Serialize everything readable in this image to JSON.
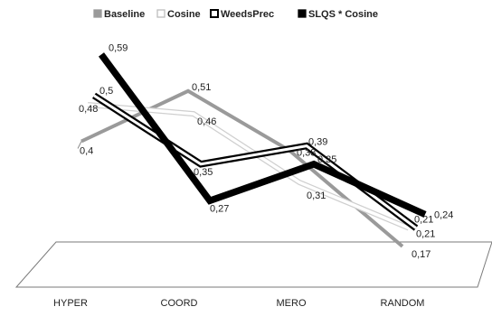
{
  "chart_data": {
    "type": "line",
    "title": "",
    "xlabel": "",
    "ylabel": "",
    "categories": [
      "HYPER",
      "COORD",
      "MERO",
      "RANDOM"
    ],
    "ylim": [
      0.1,
      0.65
    ],
    "grid": false,
    "legend_position": "top",
    "style": "3d-ribbon",
    "series": [
      {
        "name": "Baseline",
        "values": [
          0.4,
          0.51,
          0.38,
          0.17
        ],
        "labels": [
          "0,4",
          "0,51",
          "0,38",
          "0,17"
        ],
        "color": "#9a9a9a",
        "outline": "#9a9a9a",
        "legend_icon": "filled-square"
      },
      {
        "name": "Cosine",
        "values": [
          0.48,
          0.46,
          0.31,
          0.21
        ],
        "labels": [
          "0,48",
          "0,46",
          "0,31",
          "0,21"
        ],
        "color": "#ffffff",
        "outline": "#cfcfcf",
        "legend_icon": "hollow-light-square"
      },
      {
        "name": "WeedsPrec",
        "values": [
          0.5,
          0.35,
          0.39,
          0.21
        ],
        "labels": [
          "0,5",
          "0,35",
          "0,39",
          "0,21"
        ],
        "color": "#ffffff",
        "outline": "#000000",
        "legend_icon": "hollow-black-square"
      },
      {
        "name": "SLQS * Cosine",
        "values": [
          0.59,
          0.27,
          0.35,
          0.24
        ],
        "labels": [
          "0,59",
          "0,27",
          "0,35",
          "0,24"
        ],
        "color": "#000000",
        "outline": "#000000",
        "legend_icon": "filled-black-square"
      }
    ]
  }
}
